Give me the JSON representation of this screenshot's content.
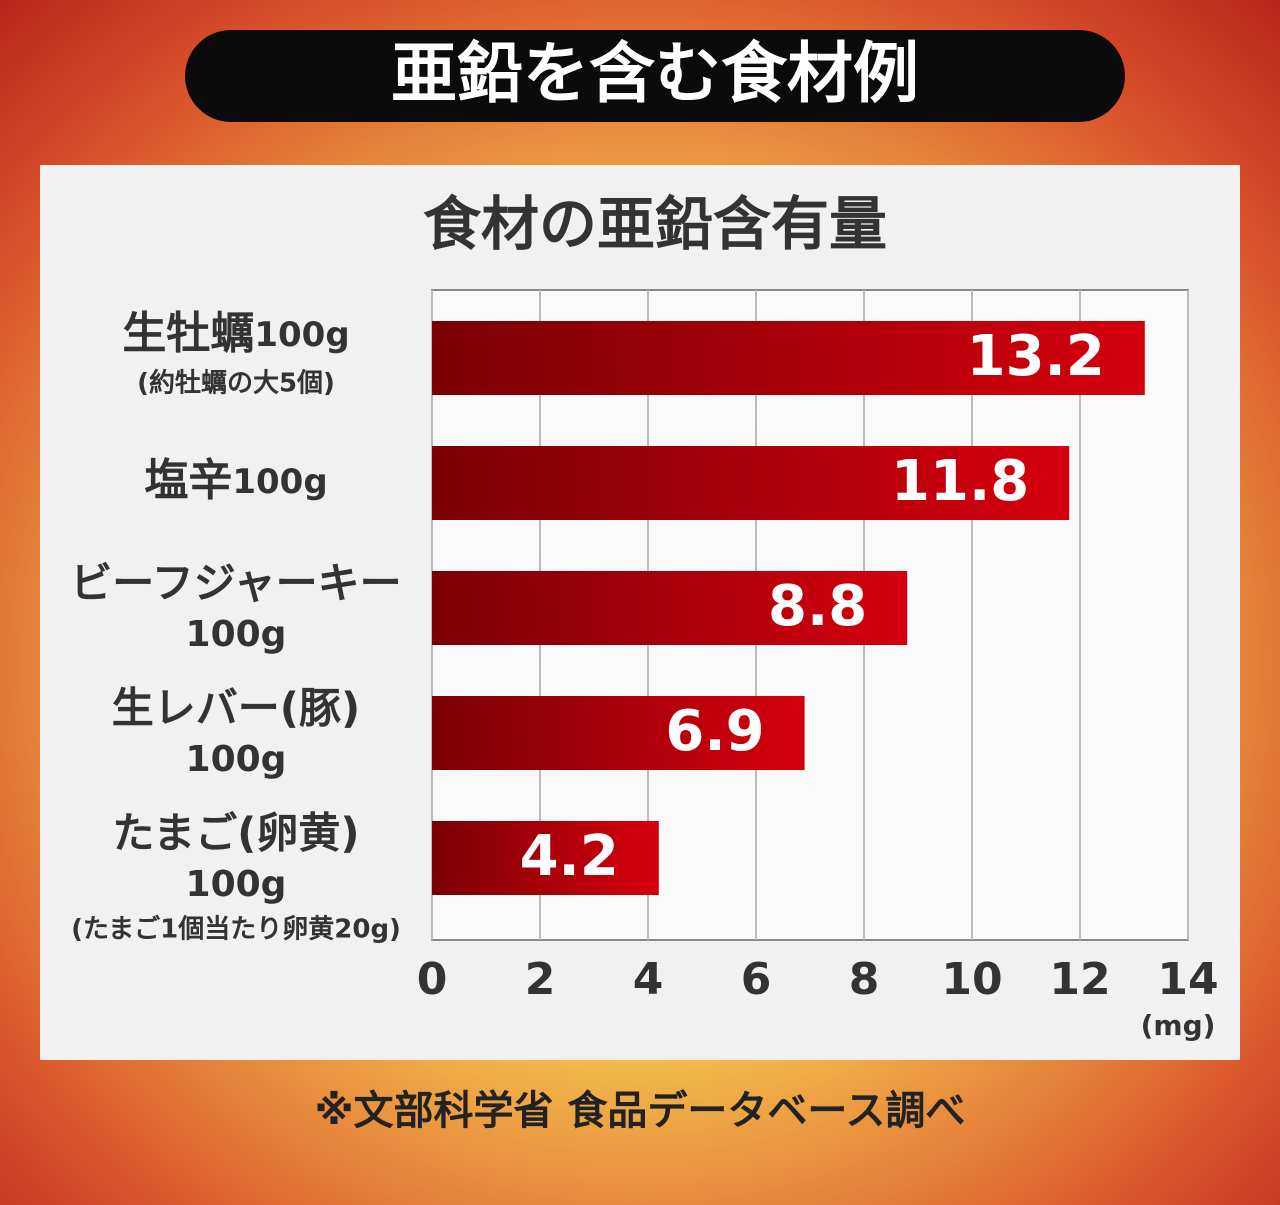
{
  "header": {
    "title": "亜鉛を含む食材例"
  },
  "chart_data": {
    "type": "bar",
    "orientation": "horizontal",
    "title": "食材の亜鉛含有量",
    "categories": [
      "生牡蠣",
      "塩辛",
      "ビーフジャーキー",
      "生レバー(豚)",
      "たまご(卵黄)"
    ],
    "category_amounts": [
      "100g",
      "100g",
      "100g",
      "100g",
      "100g"
    ],
    "category_notes": [
      "(約牡蠣の大5個)",
      null,
      null,
      null,
      "(たまご1個当たり卵黄20g)"
    ],
    "values": [
      13.2,
      11.8,
      8.8,
      6.9,
      4.2
    ],
    "color": "#c8000a",
    "xlim": [
      0,
      14
    ],
    "xticks": [
      0,
      2,
      4,
      6,
      8,
      10,
      12,
      14
    ],
    "x_unit": "(mg)",
    "grid": true
  },
  "footer": {
    "source": "※文部科学省 食品データベース調べ"
  }
}
